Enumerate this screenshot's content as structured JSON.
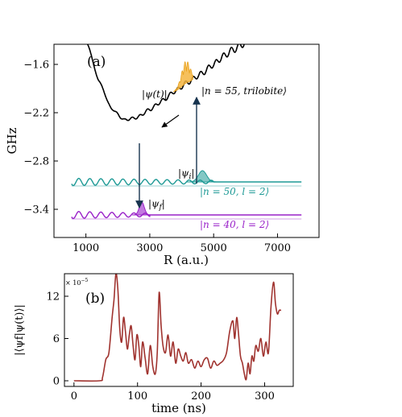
{
  "chart_data": [
    {
      "type": "line",
      "panel_label": "(a)",
      "xlabel": "R (a.u.)",
      "ylabel": "GHz",
      "xlim": [
        0,
        8300
      ],
      "ylim": [
        -3.75,
        -1.35
      ],
      "x_ticks": [
        {
          "value": 1000,
          "label": "1000"
        },
        {
          "value": 3000,
          "label": "3000"
        },
        {
          "value": 5000,
          "label": "5000"
        },
        {
          "value": 7000,
          "label": "7000"
        }
      ],
      "y_ticks": [
        {
          "value": -1.6,
          "label": "−1.6"
        },
        {
          "value": -2.2,
          "label": "−2.2"
        },
        {
          "value": -2.8,
          "label": "−2.8"
        },
        {
          "value": -3.4,
          "label": "−3.4"
        }
      ],
      "grid": false,
      "series": [
        {
          "name": "|n = 55, trilobite⟩",
          "color": "#000000",
          "x": [
            1050,
            1400,
            1800,
            2200,
            2600,
            3000,
            3400,
            3800,
            4200,
            4600,
            5000,
            5300,
            5600,
            6000
          ],
          "y": [
            -1.35,
            -1.8,
            -2.15,
            -2.29,
            -2.26,
            -2.16,
            -2.05,
            -1.93,
            -1.82,
            -1.72,
            -1.6,
            -1.5,
            -1.42,
            -1.33
          ]
        },
        {
          "name": "|n = 50, l = 2⟩",
          "color": "#1e9a96",
          "level": -3.06,
          "x_range": [
            550,
            7750
          ],
          "oscillation_until": 5000
        },
        {
          "name": "|n = 40, l = 2⟩",
          "color": "#9a22c9",
          "level": -3.47,
          "x_range": [
            550,
            7750
          ],
          "oscillation_until": 3000
        }
      ],
      "annotations": {
        "psi_t": "|ψ(t)|",
        "psi_i": "|ψ",
        "psi_i_sub": "i",
        "psi_f": "|ψ",
        "psi_f_sub": "f",
        "bar": "|",
        "ket55_pre": "|n = 55, ",
        "ket55_it": "trilobite",
        "ket55_post": "⟩",
        "ket50": "|n = 50, l = 2⟩",
        "ket40": "|n = 40, l = 2⟩"
      },
      "colors": {
        "trilobite": "#000000",
        "teal": "#1e9a96",
        "purple": "#9a22c9",
        "wavepacket": "#f5b540",
        "arrow": "#17344f"
      }
    },
    {
      "type": "line",
      "panel_label": "(b)",
      "xlabel": "time (ns)",
      "ylabel": "|⟨ψf|ψ(t)⟩|",
      "scale_label": "× 10",
      "scale_exp": "−5",
      "xlim": [
        -15,
        345
      ],
      "ylim": [
        -0.8,
        15.2
      ],
      "x_ticks": [
        {
          "value": 0,
          "label": "0"
        },
        {
          "value": 100,
          "label": "100"
        },
        {
          "value": 200,
          "label": "200"
        },
        {
          "value": 300,
          "label": "300"
        }
      ],
      "y_ticks": [
        {
          "value": 0,
          "label": "0"
        },
        {
          "value": 6,
          "label": "6"
        },
        {
          "value": 12,
          "label": "12"
        }
      ],
      "grid": false,
      "series": [
        {
          "color": "#a0332f",
          "x": [
            0,
            40,
            45,
            50,
            55,
            60,
            63,
            66,
            69,
            72,
            75,
            78,
            81,
            84,
            87,
            90,
            93,
            96,
            99,
            102,
            105,
            108,
            112,
            116,
            120,
            124,
            128,
            131,
            134,
            137,
            140,
            144,
            148,
            152,
            156,
            160,
            164,
            168,
            172,
            176,
            180,
            185,
            190,
            195,
            200,
            205,
            210,
            215,
            220,
            225,
            230,
            235,
            240,
            245,
            250,
            253,
            256,
            259,
            262,
            265,
            268,
            271,
            274,
            277,
            280,
            283,
            286,
            290,
            294,
            298,
            302,
            306,
            310,
            314,
            317,
            320,
            323,
            326
          ],
          "y": [
            0,
            0,
            0.5,
            3.0,
            4.0,
            9.0,
            11.5,
            15.2,
            13.0,
            7.5,
            5.5,
            9.0,
            7.0,
            4.5,
            6.5,
            7.8,
            5.0,
            3.0,
            6.5,
            5.0,
            2.0,
            5.5,
            3.2,
            1.0,
            5.0,
            2.0,
            1.0,
            4.0,
            12.5,
            8.0,
            5.0,
            4.0,
            6.5,
            3.5,
            5.5,
            2.5,
            4.5,
            3.5,
            2.8,
            4.0,
            2.5,
            3.0,
            1.8,
            2.8,
            2.0,
            3.0,
            3.2,
            1.8,
            2.8,
            2.2,
            2.5,
            2.9,
            4.0,
            7.0,
            8.5,
            6.0,
            9.0,
            6.5,
            3.5,
            2.5,
            1.0,
            0.2,
            2.5,
            1.0,
            3.5,
            2.8,
            5.0,
            4.2,
            6.0,
            3.5,
            5.5,
            4.0,
            10.5,
            14.0,
            11.0,
            9.5,
            10.0,
            10.0
          ]
        }
      ],
      "colors": {
        "curve": "#a0332f"
      }
    }
  ]
}
